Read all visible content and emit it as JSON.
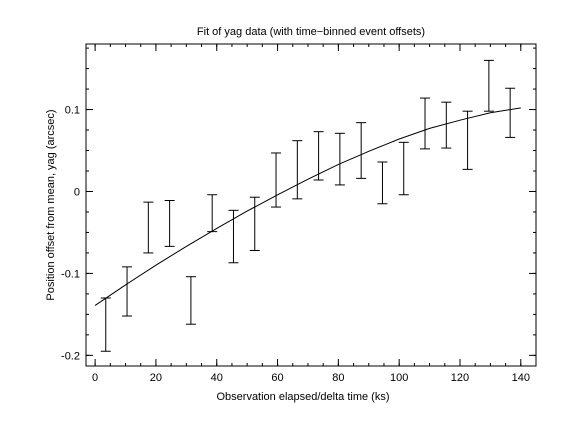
{
  "chart_data": {
    "type": "scatter",
    "title": "Fit of yag data (with time−binned event offsets)",
    "xlabel": "Observation elapsed/delta time (ks)",
    "ylabel": "Position offset from mean, yag (arcsec)",
    "xlim": [
      -3,
      145
    ],
    "ylim": [
      -0.213,
      0.18
    ],
    "xticks": [
      0,
      20,
      40,
      60,
      80,
      100,
      120,
      140
    ],
    "yticks": [
      -0.2,
      -0.1,
      0,
      0.1
    ],
    "ytick_labels": [
      "-0.2",
      "-0.1",
      "0",
      "0.1"
    ],
    "x_minor_step": 5,
    "y_minor_step": 0.025,
    "grid": false,
    "series": [
      {
        "type": "errorbar",
        "x": [
          3.5,
          10.5,
          17.5,
          24.5,
          31.5,
          38.5,
          45.5,
          52.5,
          59.5,
          66.5,
          73.5,
          80.5,
          87.5,
          94.5,
          101.5,
          108.5,
          115.5,
          122.5,
          129.5,
          136.5
        ],
        "low": [
          -0.195,
          -0.152,
          -0.075,
          -0.067,
          -0.162,
          -0.049,
          -0.087,
          -0.072,
          -0.019,
          -0.009,
          0.014,
          0.008,
          0.016,
          -0.015,
          -0.004,
          0.052,
          0.053,
          0.027,
          0.098,
          0.066
        ],
        "high": [
          -0.13,
          -0.092,
          -0.013,
          -0.011,
          -0.104,
          -0.004,
          -0.023,
          -0.007,
          0.047,
          0.062,
          0.073,
          0.071,
          0.084,
          0.036,
          0.06,
          0.114,
          0.109,
          0.098,
          0.16,
          0.126
        ]
      },
      {
        "type": "line",
        "x": [
          0,
          10,
          20,
          30,
          40,
          50,
          60,
          70,
          80,
          90,
          100,
          110,
          120,
          130,
          140
        ],
        "y": [
          -0.139,
          -0.114,
          -0.09,
          -0.067,
          -0.045,
          -0.024,
          -0.004,
          0.015,
          0.033,
          0.049,
          0.064,
          0.077,
          0.087,
          0.096,
          0.102
        ]
      }
    ]
  }
}
